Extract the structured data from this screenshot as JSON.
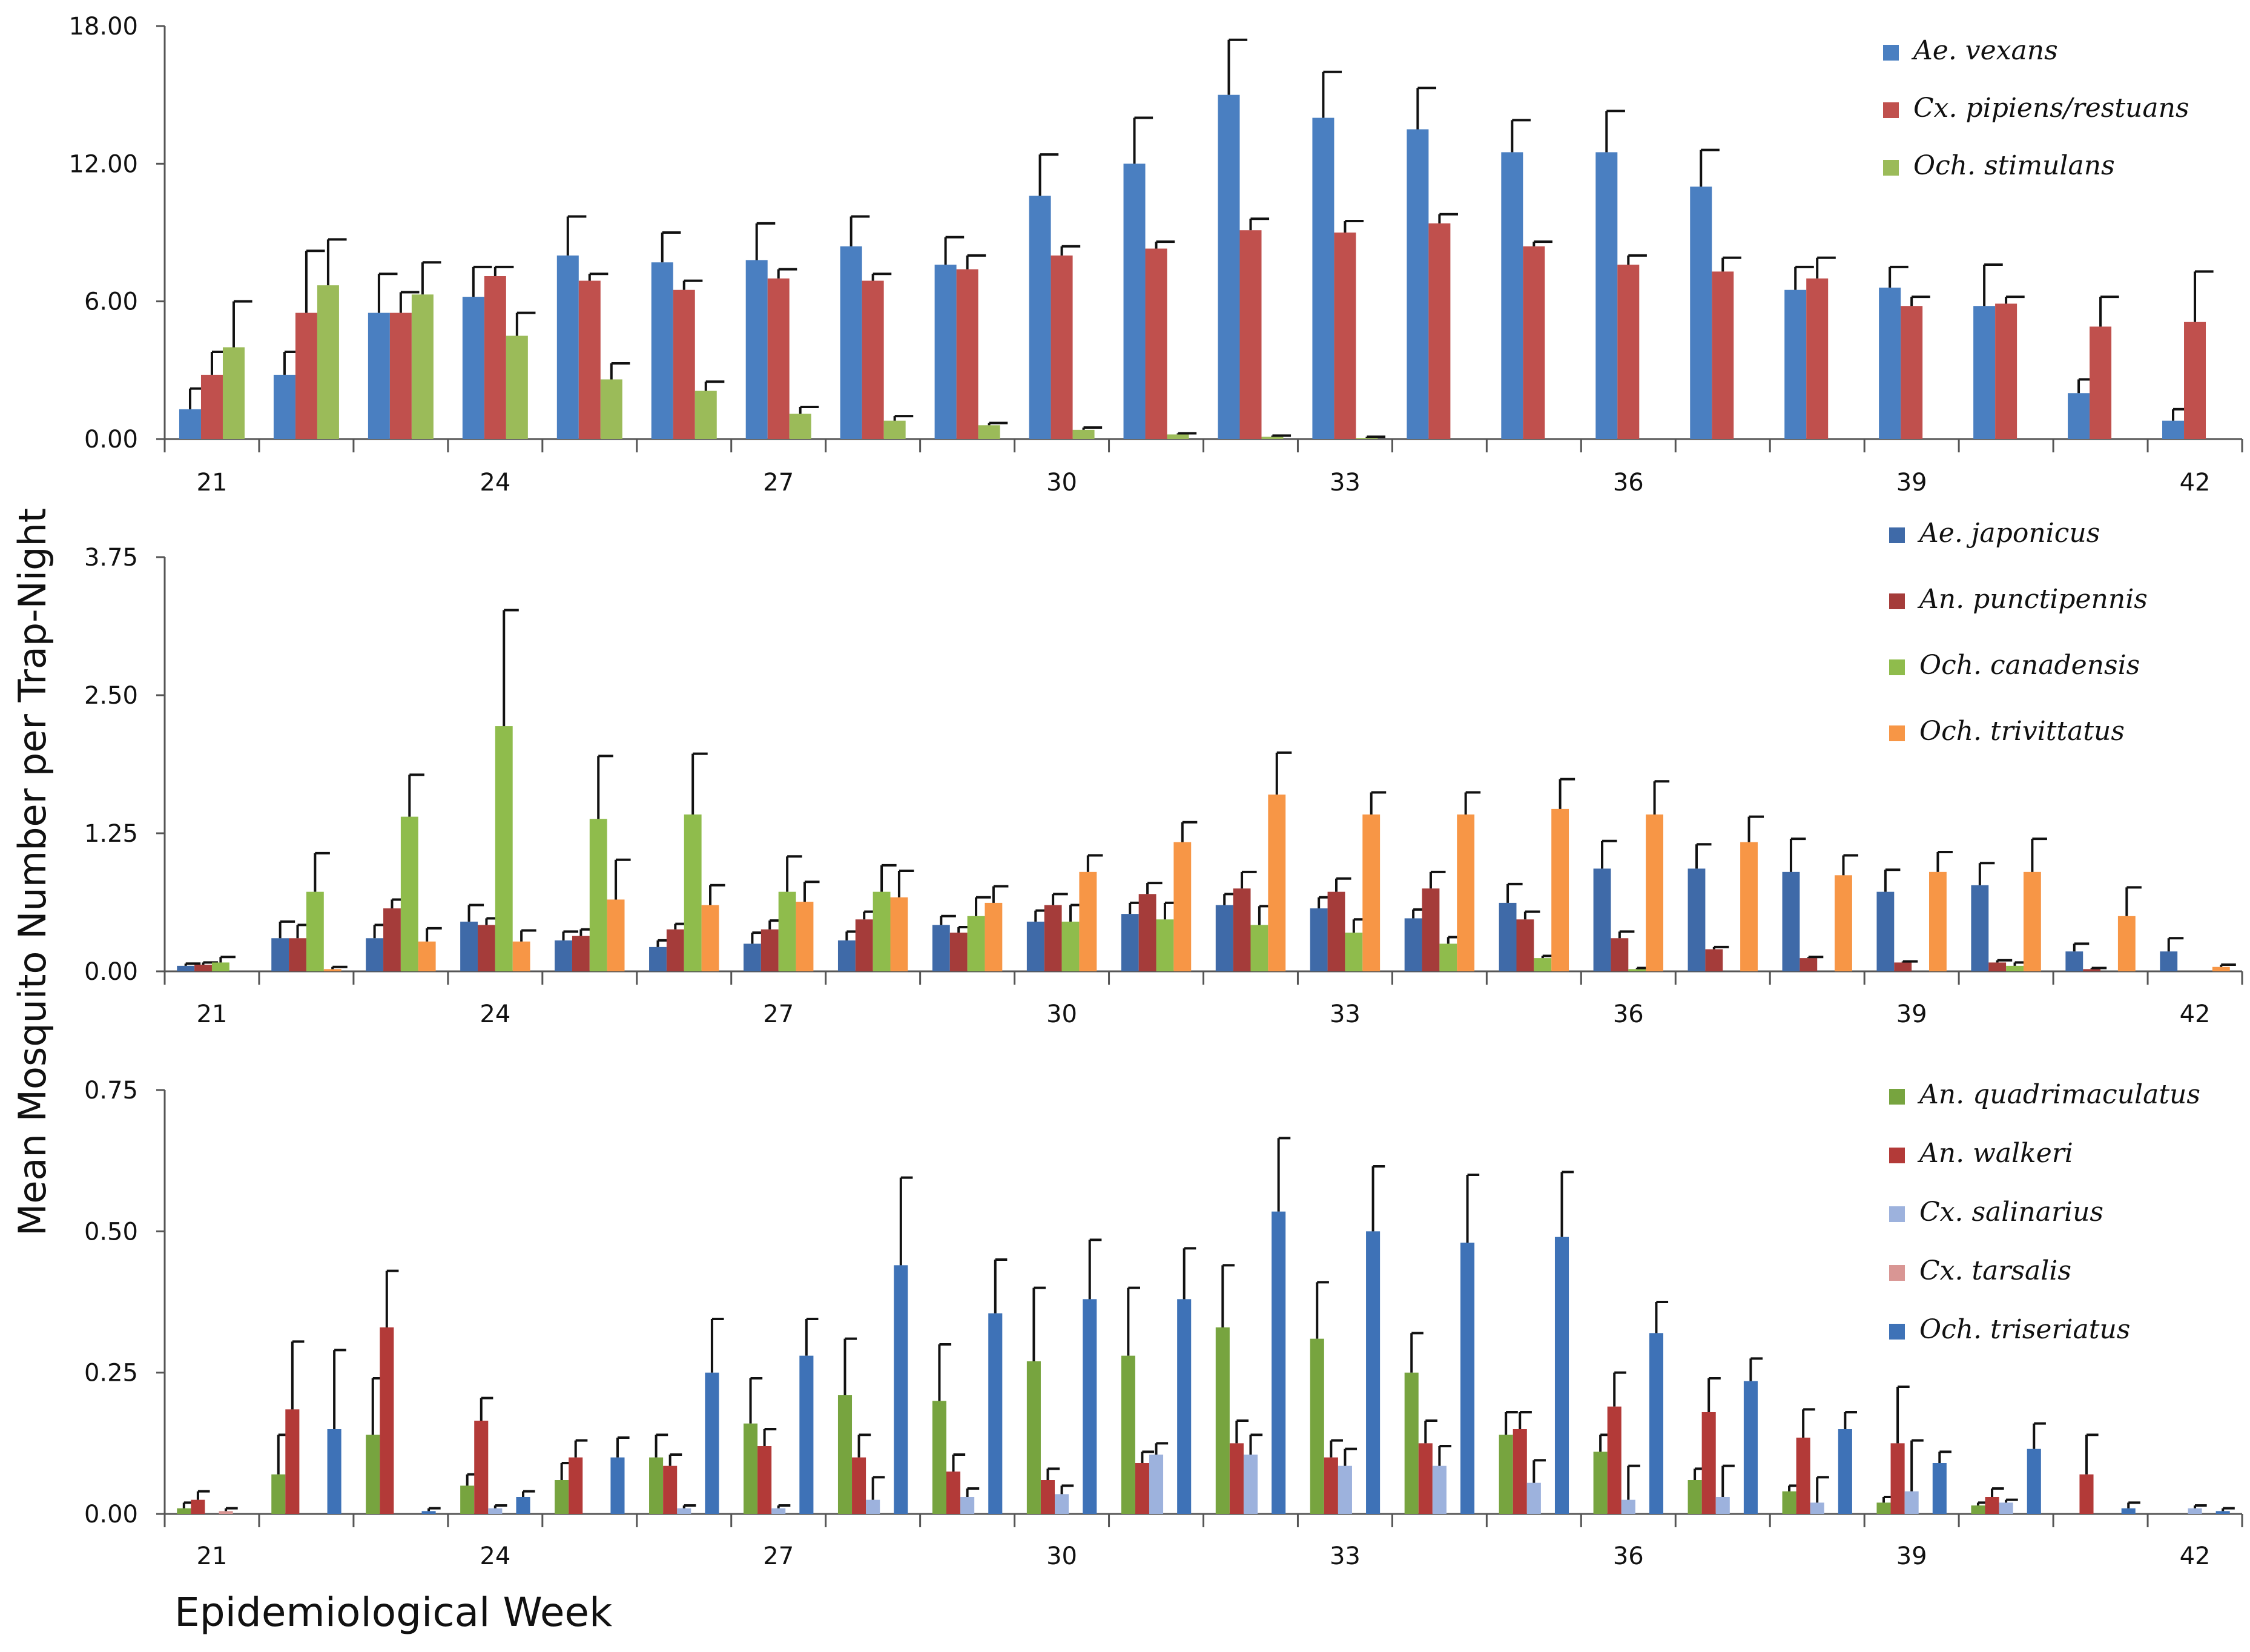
{
  "shared": {
    "ylabel": "Mean Mosquito Number per Trap-Night",
    "xlabel": "Epidemiological Week"
  },
  "chart_data": [
    {
      "type": "bar",
      "title": "",
      "weeks": [
        21,
        22,
        23,
        24,
        25,
        26,
        27,
        28,
        29,
        30,
        31,
        32,
        33,
        34,
        35,
        36,
        37,
        38,
        39,
        40,
        41,
        42
      ],
      "x_tick_labels": [
        "21",
        "24",
        "27",
        "30",
        "33",
        "36",
        "39",
        "42"
      ],
      "x_tick_weeks": [
        21,
        24,
        27,
        30,
        33,
        36,
        39,
        42
      ],
      "ylim": [
        0,
        18
      ],
      "y_ticks": [
        0,
        6,
        12,
        18
      ],
      "y_tick_labels": [
        "0.00",
        "6.00",
        "12.00",
        "18.00"
      ],
      "legend_position": "top-right",
      "series": [
        {
          "name": "Ae. vexans",
          "color": "#4a7fc1",
          "values": [
            1.3,
            2.8,
            5.5,
            6.2,
            8.0,
            7.7,
            7.8,
            8.4,
            7.6,
            10.6,
            12.0,
            15.0,
            14.0,
            13.5,
            12.5,
            12.5,
            11.0,
            6.5,
            6.6,
            5.8,
            2.0,
            0.8
          ],
          "errors": [
            0.9,
            1.0,
            1.7,
            1.3,
            1.7,
            1.3,
            1.6,
            1.3,
            1.2,
            1.8,
            2.0,
            2.4,
            2.0,
            1.8,
            1.4,
            1.8,
            1.6,
            1.0,
            0.9,
            1.8,
            0.6,
            0.5
          ]
        },
        {
          "name": "Cx. pipiens/restuans",
          "color": "#c0504d",
          "values": [
            2.8,
            5.5,
            5.5,
            7.1,
            6.9,
            6.5,
            7.0,
            6.9,
            7.4,
            8.0,
            8.3,
            9.1,
            9.0,
            9.4,
            8.4,
            7.6,
            7.3,
            7.0,
            5.8,
            5.9,
            4.9,
            5.1
          ],
          "errors": [
            1.0,
            2.7,
            0.9,
            0.4,
            0.3,
            0.4,
            0.4,
            0.3,
            0.6,
            0.4,
            0.3,
            0.5,
            0.5,
            0.4,
            0.2,
            0.4,
            0.6,
            0.9,
            0.4,
            0.3,
            1.3,
            2.2
          ]
        },
        {
          "name": "Och. stimulans",
          "color": "#9bbb59",
          "values": [
            4.0,
            6.7,
            6.3,
            4.5,
            2.6,
            2.1,
            1.1,
            0.8,
            0.6,
            0.4,
            0.2,
            0.1,
            0.05,
            0,
            0,
            0,
            0,
            0,
            0,
            0,
            0,
            0
          ],
          "errors": [
            2.0,
            2.0,
            1.4,
            1.0,
            0.7,
            0.4,
            0.3,
            0.2,
            0.1,
            0.1,
            0.05,
            0.05,
            0.05,
            0,
            0,
            0,
            0,
            0,
            0,
            0,
            0,
            0
          ]
        }
      ]
    },
    {
      "type": "bar",
      "title": "",
      "weeks": [
        21,
        22,
        23,
        24,
        25,
        26,
        27,
        28,
        29,
        30,
        31,
        32,
        33,
        34,
        35,
        36,
        37,
        38,
        39,
        40,
        41,
        42
      ],
      "x_tick_labels": [
        "21",
        "24",
        "27",
        "30",
        "33",
        "36",
        "39",
        "42"
      ],
      "x_tick_weeks": [
        21,
        24,
        27,
        30,
        33,
        36,
        39,
        42
      ],
      "ylim": [
        0,
        3.75
      ],
      "y_ticks": [
        0,
        1.25,
        2.5,
        3.75
      ],
      "y_tick_labels": [
        "0.00",
        "1.25",
        "2.50",
        "3.75"
      ],
      "legend_position": "top-right",
      "series": [
        {
          "name": "Ae. japonicus",
          "color": "#3f6aa8",
          "values": [
            0.05,
            0.3,
            0.3,
            0.45,
            0.28,
            0.22,
            0.25,
            0.28,
            0.42,
            0.45,
            0.52,
            0.6,
            0.57,
            0.48,
            0.62,
            0.93,
            0.93,
            0.9,
            0.72,
            0.78,
            0.18,
            0.18
          ],
          "errors": [
            0.02,
            0.15,
            0.12,
            0.15,
            0.08,
            0.06,
            0.1,
            0.08,
            0.08,
            0.1,
            0.1,
            0.1,
            0.1,
            0.08,
            0.17,
            0.25,
            0.22,
            0.3,
            0.2,
            0.2,
            0.07,
            0.12
          ]
        },
        {
          "name": "An. punctipennis",
          "color": "#a53c3a",
          "values": [
            0.06,
            0.3,
            0.57,
            0.42,
            0.32,
            0.38,
            0.38,
            0.47,
            0.35,
            0.6,
            0.7,
            0.75,
            0.72,
            0.75,
            0.47,
            0.3,
            0.2,
            0.12,
            0.08,
            0.08,
            0.02,
            0
          ],
          "errors": [
            0.02,
            0.12,
            0.08,
            0.06,
            0.06,
            0.05,
            0.08,
            0.07,
            0.05,
            0.1,
            0.1,
            0.15,
            0.12,
            0.15,
            0.07,
            0.06,
            0.02,
            0.01,
            0.01,
            0.02,
            0.01,
            0
          ]
        },
        {
          "name": "Och. canadensis",
          "color": "#8fbc4c",
          "values": [
            0.08,
            0.72,
            1.4,
            2.22,
            1.38,
            1.42,
            0.72,
            0.72,
            0.5,
            0.45,
            0.47,
            0.42,
            0.35,
            0.25,
            0.12,
            0.02,
            0,
            0,
            0,
            0.05,
            0,
            0
          ],
          "errors": [
            0.05,
            0.35,
            0.38,
            1.05,
            0.57,
            0.55,
            0.32,
            0.24,
            0.17,
            0.15,
            0.15,
            0.17,
            0.12,
            0.06,
            0.02,
            0.01,
            0,
            0,
            0,
            0.03,
            0,
            0
          ]
        },
        {
          "name": "Och. trivittatus",
          "color": "#f79646",
          "values": [
            0,
            0.02,
            0.27,
            0.27,
            0.65,
            0.6,
            0.63,
            0.67,
            0.62,
            0.9,
            1.17,
            1.6,
            1.42,
            1.42,
            1.47,
            1.42,
            1.17,
            0.87,
            0.9,
            0.9,
            0.5,
            0.04
          ],
          "errors": [
            0,
            0.02,
            0.12,
            0.1,
            0.36,
            0.18,
            0.18,
            0.24,
            0.15,
            0.15,
            0.18,
            0.38,
            0.2,
            0.2,
            0.27,
            0.3,
            0.23,
            0.18,
            0.18,
            0.3,
            0.26,
            0.02
          ]
        }
      ]
    },
    {
      "type": "bar",
      "title": "",
      "weeks": [
        21,
        22,
        23,
        24,
        25,
        26,
        27,
        28,
        29,
        30,
        31,
        32,
        33,
        34,
        35,
        36,
        37,
        38,
        39,
        40,
        41,
        42
      ],
      "x_tick_labels": [
        "21",
        "24",
        "27",
        "30",
        "33",
        "36",
        "39",
        "42"
      ],
      "x_tick_weeks": [
        21,
        24,
        27,
        30,
        33,
        36,
        39,
        42
      ],
      "ylim": [
        0,
        0.75
      ],
      "y_ticks": [
        0,
        0.25,
        0.5,
        0.75
      ],
      "y_tick_labels": [
        "0.00",
        "0.25",
        "0.50",
        "0.75"
      ],
      "legend_position": "top-right",
      "series": [
        {
          "name": "An. quadrimaculatus",
          "color": "#77a43f",
          "values": [
            0.01,
            0.07,
            0.14,
            0.05,
            0.06,
            0.1,
            0.16,
            0.21,
            0.2,
            0.27,
            0.28,
            0.33,
            0.31,
            0.25,
            0.14,
            0.11,
            0.06,
            0.04,
            0.02,
            0.015,
            0,
            0
          ],
          "errors": [
            0.01,
            0.07,
            0.1,
            0.02,
            0.03,
            0.04,
            0.08,
            0.1,
            0.1,
            0.13,
            0.12,
            0.11,
            0.1,
            0.07,
            0.04,
            0.03,
            0.02,
            0.01,
            0.01,
            0.005,
            0,
            0
          ]
        },
        {
          "name": "An. walkeri",
          "color": "#b33a38",
          "values": [
            0.025,
            0.185,
            0.33,
            0.165,
            0.1,
            0.085,
            0.12,
            0.1,
            0.075,
            0.06,
            0.09,
            0.125,
            0.1,
            0.125,
            0.15,
            0.19,
            0.18,
            0.135,
            0.125,
            0.03,
            0.07,
            0
          ],
          "errors": [
            0.015,
            0.12,
            0.1,
            0.04,
            0.03,
            0.02,
            0.03,
            0.04,
            0.03,
            0.02,
            0.02,
            0.04,
            0.03,
            0.04,
            0.03,
            0.06,
            0.06,
            0.05,
            0.1,
            0.015,
            0.07,
            0
          ]
        },
        {
          "name": "Cx. salinarius",
          "color": "#9db2dd",
          "values": [
            0,
            0,
            0,
            0.01,
            0,
            0.01,
            0.01,
            0.025,
            0.03,
            0.035,
            0.105,
            0.105,
            0.085,
            0.085,
            0.055,
            0.025,
            0.03,
            0.02,
            0.04,
            0.02,
            0,
            0.01
          ],
          "errors": [
            0,
            0,
            0,
            0.005,
            0,
            0.005,
            0.005,
            0.04,
            0.015,
            0.015,
            0.02,
            0.035,
            0.03,
            0.035,
            0.04,
            0.06,
            0.055,
            0.045,
            0.09,
            0.005,
            0,
            0.005
          ]
        },
        {
          "name": "Cx. tarsalis",
          "color": "#d99694",
          "values": [
            0.005,
            0,
            0,
            0,
            0,
            0,
            0,
            0,
            0,
            0,
            0,
            0,
            0,
            0,
            0,
            0,
            0,
            0,
            0,
            0,
            0,
            0
          ],
          "errors": [
            0.005,
            0,
            0,
            0,
            0,
            0,
            0,
            0,
            0,
            0,
            0,
            0,
            0,
            0,
            0,
            0,
            0,
            0,
            0,
            0,
            0,
            0
          ]
        },
        {
          "name": "Och. triseriatus",
          "color": "#3e72b7",
          "values": [
            0,
            0.15,
            0.005,
            0.03,
            0.1,
            0.25,
            0.28,
            0.44,
            0.355,
            0.38,
            0.38,
            0.535,
            0.5,
            0.48,
            0.49,
            0.32,
            0.235,
            0.15,
            0.09,
            0.115,
            0.01,
            0.005
          ],
          "errors": [
            0,
            0.14,
            0.005,
            0.01,
            0.035,
            0.095,
            0.065,
            0.155,
            0.095,
            0.105,
            0.09,
            0.13,
            0.115,
            0.12,
            0.115,
            0.055,
            0.04,
            0.03,
            0.02,
            0.045,
            0.01,
            0.005
          ]
        }
      ]
    }
  ]
}
